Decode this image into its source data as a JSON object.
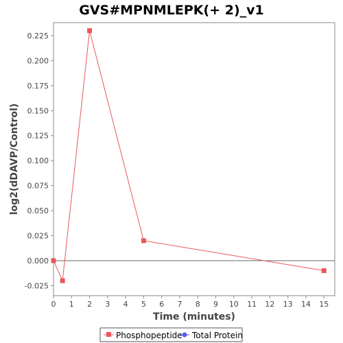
{
  "chart_data": {
    "type": "line",
    "title": "GVS#MPNMLEPK(+ 2)_v1",
    "xlabel": "Time (minutes)",
    "ylabel": "log2(dDAVP/Control)",
    "xlim": [
      0,
      15.6
    ],
    "ylim": [
      -0.035,
      0.238
    ],
    "x_ticks": [
      0,
      1,
      2,
      3,
      4,
      5,
      6,
      7,
      8,
      9,
      10,
      11,
      12,
      13,
      14,
      15
    ],
    "y_ticks": [
      -0.025,
      0.0,
      0.025,
      0.05,
      0.075,
      0.1,
      0.125,
      0.15,
      0.175,
      0.2,
      0.225
    ],
    "y_tick_labels": [
      "-0.025",
      "0.000",
      "0.025",
      "0.050",
      "0.075",
      "0.100",
      "0.125",
      "0.150",
      "0.175",
      "0.200",
      "0.225"
    ],
    "grid": false,
    "zero_line": true,
    "legend_position": "bottom",
    "series": [
      {
        "name": "Phosphopeptide",
        "color": "#e8575a",
        "marker": "square",
        "x": [
          0,
          0.5,
          2,
          5,
          15
        ],
        "y": [
          0.0,
          -0.02,
          0.23,
          0.02,
          -0.01
        ]
      },
      {
        "name": "Total Protein",
        "color": "#5b5bef",
        "marker": "circle",
        "x": [],
        "y": []
      }
    ]
  }
}
